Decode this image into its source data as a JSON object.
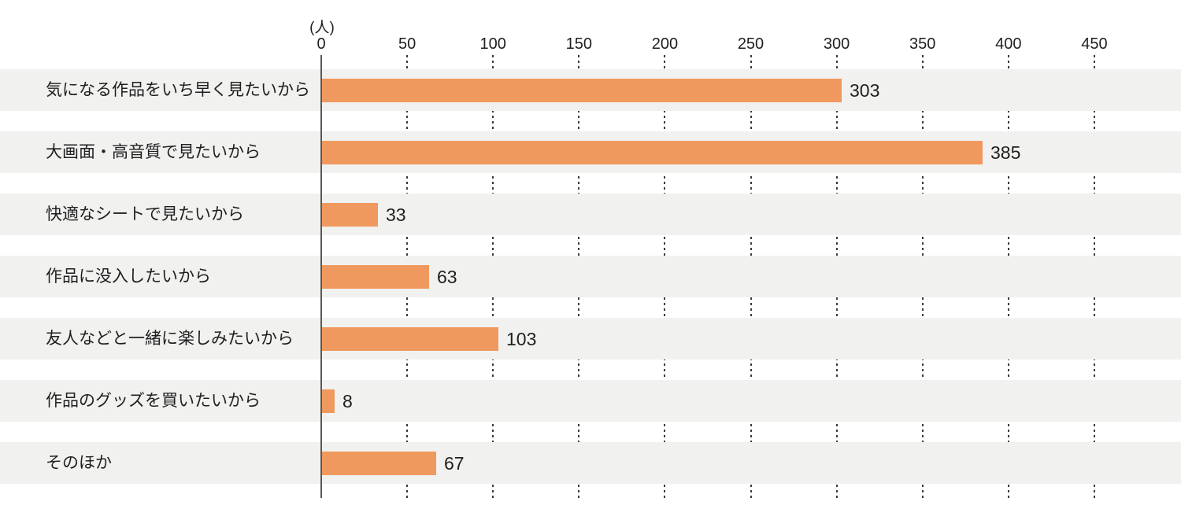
{
  "chart_data": {
    "type": "bar",
    "orientation": "horizontal",
    "title": "",
    "unit_label": "(人)",
    "categories": [
      "気になる作品をいち早く見たいから",
      "大画面・高音質で見たいから",
      "快適なシートで見たいから",
      "作品に没入したいから",
      "友人などと一緒に楽しみたいから",
      "作品のグッズを買いたいから",
      "そのほか"
    ],
    "values": [
      303,
      385,
      33,
      63,
      103,
      8,
      67
    ],
    "x_ticks": [
      0,
      50,
      100,
      150,
      200,
      250,
      300,
      350,
      400,
      450
    ],
    "xlim": [
      0,
      500
    ],
    "grid": "dotted-vertical",
    "legend_position": "none",
    "colors": {
      "bar": "#f0995e",
      "row_band": "#f1f1f0",
      "axis_line": "#595959",
      "gridline_dot": "#3c3c3c",
      "text": "#1f1f1f",
      "background": "#ffffff"
    }
  }
}
